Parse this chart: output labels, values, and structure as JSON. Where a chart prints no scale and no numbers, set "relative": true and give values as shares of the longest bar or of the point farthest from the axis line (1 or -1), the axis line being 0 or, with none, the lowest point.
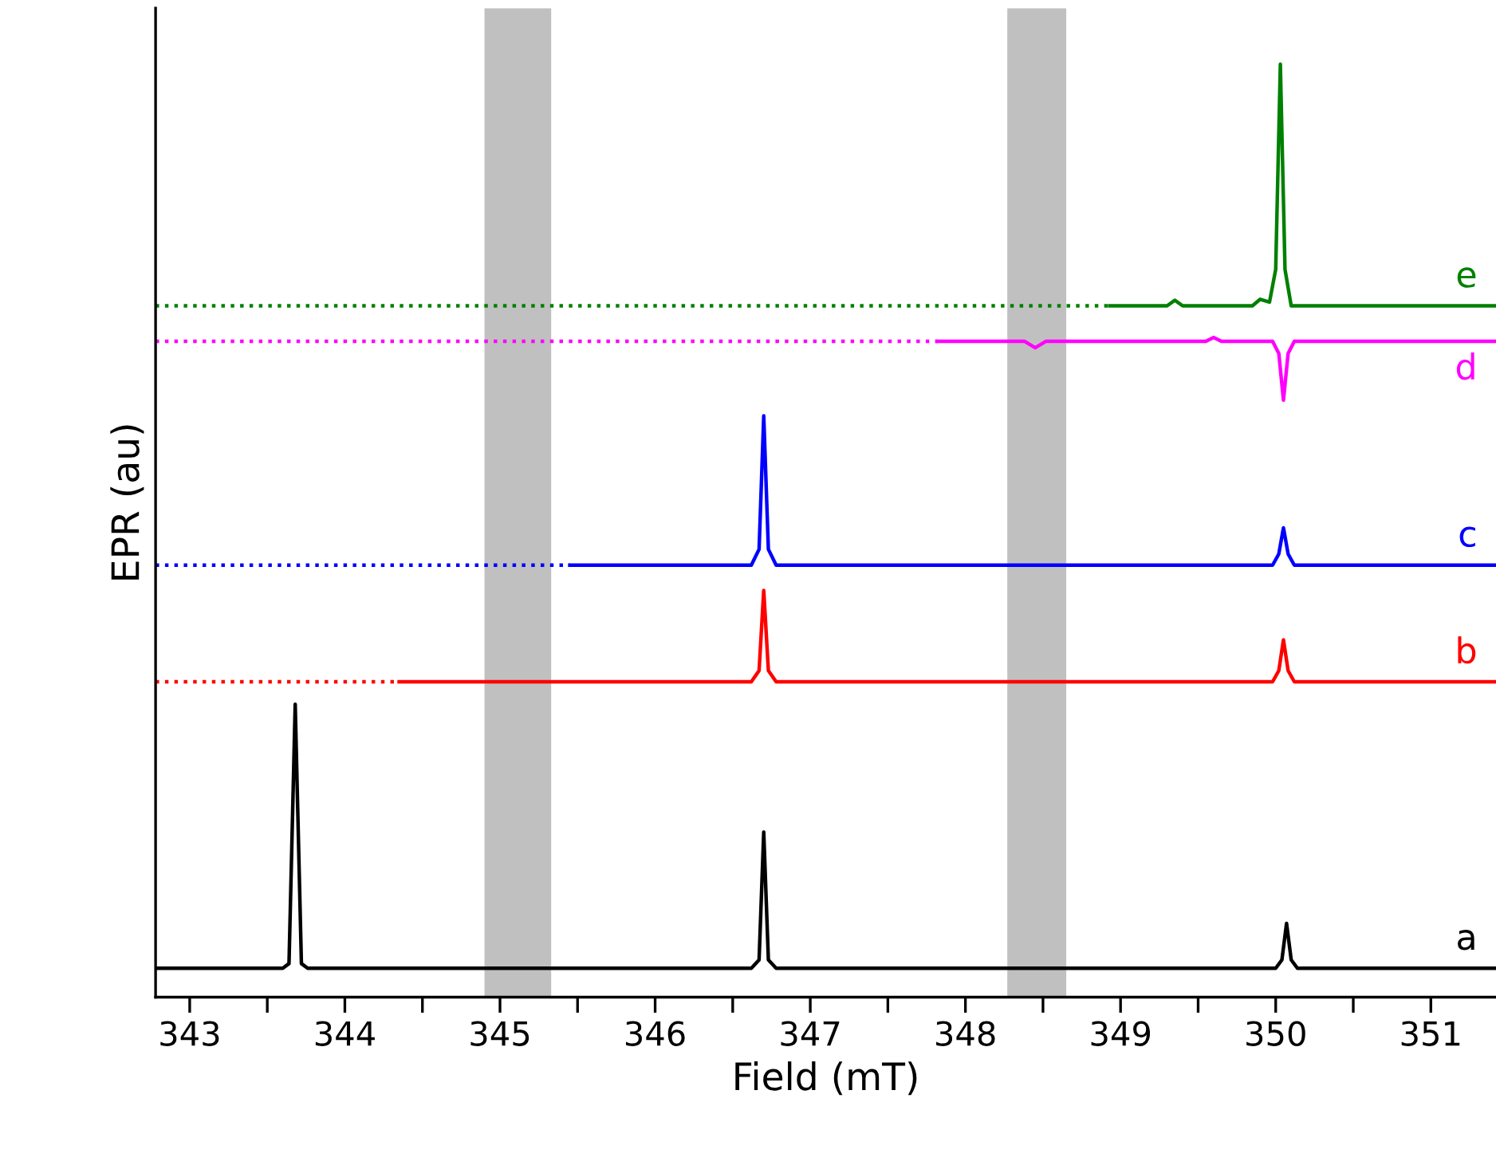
{
  "chart_data": {
    "type": "line",
    "xlabel": "Field (mT)",
    "ylabel": "EPR (au)",
    "relative": true,
    "xlim": [
      342.78,
      351.42
    ],
    "xticks": [
      343,
      {
        "value": 343.5,
        "label": null
      },
      344,
      {
        "value": 344.5,
        "label": null
      },
      345,
      {
        "value": 345.5,
        "label": null
      },
      346,
      {
        "value": 346.5,
        "label": null
      },
      347,
      {
        "value": 347.5,
        "label": null
      },
      348,
      {
        "value": 348.5,
        "label": null
      },
      349,
      {
        "value": 349.5,
        "label": null
      },
      350,
      {
        "value": 350.5,
        "label": null
      },
      351
    ],
    "bands": [
      {
        "axis": "x",
        "from": 344.9,
        "to": 345.33,
        "color": "#c0c0c0"
      },
      {
        "axis": "x",
        "from": 348.27,
        "to": 348.65,
        "color": "#c0c0c0"
      }
    ],
    "series": [
      {
        "name": "a",
        "color": "#000000",
        "x": [
          342.78,
          343.6,
          343.64,
          343.68,
          343.72,
          343.76,
          346.62,
          346.67,
          346.7,
          346.73,
          346.78,
          350.0,
          350.04,
          350.07,
          350.1,
          350.14,
          351.42
        ],
        "values": [
          0.031,
          0.031,
          0.036,
          0.314,
          0.036,
          0.031,
          0.031,
          0.04,
          0.177,
          0.04,
          0.031,
          0.031,
          0.04,
          0.079,
          0.04,
          0.031,
          0.031
        ]
      },
      {
        "color": "#ff0000",
        "line_style": "dotted",
        "x": [
          342.78,
          344.35
        ],
        "values": [
          0.338,
          0.338
        ]
      },
      {
        "name": "b",
        "color": "#ff0000",
        "x": [
          344.35,
          346.62,
          346.67,
          346.7,
          346.73,
          346.78,
          349.98,
          350.02,
          350.05,
          350.08,
          350.12,
          351.42
        ],
        "values": [
          0.338,
          0.338,
          0.35,
          0.436,
          0.35,
          0.338,
          0.338,
          0.35,
          0.383,
          0.35,
          0.338,
          0.338
        ]
      },
      {
        "color": "#0000ff",
        "line_style": "dotted",
        "x": [
          342.78,
          345.45
        ],
        "values": [
          0.463,
          0.463
        ]
      },
      {
        "name": "c",
        "color": "#0000ff",
        "x": [
          345.45,
          346.62,
          346.67,
          346.7,
          346.73,
          346.78,
          349.98,
          350.02,
          350.05,
          350.08,
          350.12,
          351.42
        ],
        "values": [
          0.463,
          0.463,
          0.48,
          0.623,
          0.48,
          0.463,
          0.463,
          0.475,
          0.503,
          0.475,
          0.463,
          0.463
        ]
      },
      {
        "color": "#ff00ff",
        "line_style": "dotted",
        "x": [
          342.78,
          347.82
        ],
        "values": [
          0.703,
          0.703
        ]
      },
      {
        "name": "d",
        "color": "#ff00ff",
        "x": [
          347.82,
          348.38,
          348.45,
          348.52,
          349.55,
          349.6,
          349.65,
          349.98,
          350.02,
          350.05,
          350.08,
          350.12,
          351.42
        ],
        "values": [
          0.703,
          0.703,
          0.696,
          0.703,
          0.703,
          0.707,
          0.703,
          0.703,
          0.69,
          0.64,
          0.69,
          0.703,
          0.703
        ]
      },
      {
        "color": "#008000",
        "line_style": "dotted",
        "x": [
          342.78,
          348.93
        ],
        "values": [
          0.741,
          0.741
        ]
      },
      {
        "name": "e",
        "color": "#008000",
        "x": [
          348.93,
          349.3,
          349.35,
          349.4,
          349.85,
          349.9,
          349.96,
          350.0,
          350.03,
          350.06,
          350.1,
          351.42
        ],
        "values": [
          0.741,
          0.741,
          0.747,
          0.741,
          0.741,
          0.748,
          0.745,
          0.78,
          1.0,
          0.78,
          0.741,
          0.741
        ]
      }
    ]
  }
}
